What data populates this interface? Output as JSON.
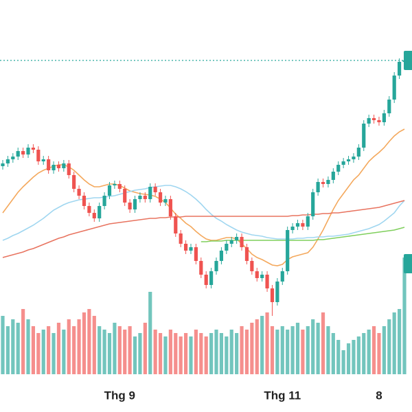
{
  "chart_data": {
    "type": "candlestick",
    "categories": [
      null,
      null,
      null,
      null,
      null,
      null,
      null,
      null,
      null,
      null,
      null,
      null,
      null,
      null,
      null,
      null,
      null,
      null,
      null,
      null,
      null,
      null,
      null,
      "Thg 9",
      null,
      null,
      null,
      null,
      null,
      null,
      null,
      null,
      null,
      null,
      null,
      null,
      null,
      null,
      null,
      null,
      null,
      null,
      null,
      null,
      null,
      null,
      null,
      null,
      null,
      null,
      null,
      null,
      null,
      null,
      null,
      "Thg 11",
      null,
      null,
      null,
      null,
      null,
      null,
      null,
      null,
      null,
      null,
      null,
      null,
      null,
      null,
      null,
      null,
      null,
      null,
      "8",
      null,
      null,
      null,
      null,
      null
    ],
    "open": [
      303,
      307,
      313,
      317,
      325,
      320,
      330,
      327,
      310,
      313,
      297,
      305,
      300,
      307,
      290,
      270,
      260,
      245,
      235,
      227,
      245,
      260,
      275,
      277,
      270,
      250,
      240,
      255,
      260,
      255,
      273,
      265,
      250,
      255,
      230,
      205,
      190,
      180,
      185,
      165,
      145,
      130,
      150,
      165,
      180,
      190,
      195,
      200,
      185,
      165,
      150,
      140,
      145,
      125,
      105,
      135,
      150,
      210,
      215,
      220,
      215,
      230,
      265,
      280,
      277,
      283,
      295,
      305,
      310,
      313,
      317,
      330,
      365,
      373,
      370,
      367,
      380,
      400,
      435,
      455
    ],
    "high": [
      312,
      318,
      322,
      330,
      330,
      335,
      335,
      332,
      318,
      318,
      310,
      310,
      312,
      312,
      295,
      275,
      265,
      250,
      240,
      250,
      265,
      280,
      282,
      282,
      275,
      255,
      260,
      265,
      265,
      278,
      278,
      270,
      260,
      260,
      235,
      210,
      195,
      190,
      190,
      170,
      150,
      155,
      170,
      185,
      195,
      200,
      205,
      205,
      190,
      170,
      155,
      150,
      150,
      130,
      140,
      155,
      215,
      220,
      225,
      225,
      235,
      270,
      285,
      285,
      288,
      300,
      310,
      315,
      318,
      322,
      335,
      370,
      378,
      378,
      375,
      385,
      405,
      440,
      460,
      462
    ],
    "low": [
      298,
      302,
      308,
      312,
      315,
      315,
      322,
      305,
      305,
      292,
      292,
      295,
      295,
      285,
      265,
      255,
      240,
      230,
      222,
      222,
      240,
      255,
      270,
      265,
      245,
      235,
      235,
      250,
      250,
      250,
      260,
      245,
      245,
      225,
      200,
      185,
      175,
      175,
      160,
      140,
      125,
      125,
      145,
      160,
      175,
      185,
      190,
      180,
      160,
      145,
      135,
      135,
      120,
      85,
      100,
      130,
      145,
      205,
      210,
      210,
      210,
      225,
      260,
      272,
      272,
      278,
      290,
      300,
      305,
      308,
      312,
      325,
      360,
      365,
      362,
      362,
      375,
      395,
      430,
      450
    ],
    "close": [
      307,
      313,
      317,
      325,
      320,
      330,
      327,
      310,
      313,
      297,
      305,
      300,
      307,
      290,
      270,
      260,
      245,
      235,
      227,
      245,
      260,
      275,
      277,
      270,
      250,
      240,
      255,
      260,
      255,
      273,
      265,
      250,
      255,
      230,
      205,
      190,
      180,
      185,
      165,
      145,
      130,
      150,
      165,
      180,
      190,
      195,
      200,
      185,
      165,
      150,
      140,
      145,
      125,
      105,
      135,
      150,
      210,
      215,
      220,
      215,
      230,
      265,
      280,
      277,
      283,
      295,
      305,
      310,
      313,
      317,
      330,
      365,
      373,
      370,
      367,
      380,
      400,
      435,
      455,
      457
    ],
    "volume": [
      85,
      70,
      80,
      75,
      95,
      80,
      70,
      60,
      65,
      70,
      60,
      75,
      65,
      80,
      70,
      80,
      90,
      95,
      85,
      70,
      65,
      60,
      75,
      70,
      65,
      70,
      55,
      60,
      75,
      120,
      65,
      60,
      55,
      65,
      60,
      55,
      60,
      55,
      65,
      60,
      55,
      60,
      65,
      60,
      55,
      65,
      60,
      70,
      65,
      75,
      80,
      85,
      90,
      70,
      65,
      70,
      65,
      70,
      75,
      65,
      70,
      80,
      75,
      90,
      70,
      60,
      50,
      35,
      45,
      50,
      55,
      60,
      65,
      70,
      60,
      70,
      80,
      90,
      95,
      170
    ],
    "ylim": [
      0,
      545
    ],
    "volume_ylim": [
      0,
      200
    ],
    "up_color": "#26a69a",
    "down_color": "#ef5350",
    "last_price_line": true,
    "series": [
      {
        "color": "#f4a85c",
        "values": [
          235,
          245,
          255,
          265,
          273,
          280,
          287,
          293,
          297,
          300,
          303,
          305,
          305,
          302,
          297,
          290,
          283,
          277,
          273,
          273,
          275,
          277,
          277,
          275,
          271,
          267,
          265,
          263,
          262,
          261,
          259,
          255,
          250,
          242,
          233,
          227,
          220,
          215,
          208,
          202,
          197,
          195,
          195,
          197,
          199,
          199,
          197,
          190,
          183,
          175,
          170,
          167,
          163,
          159,
          158,
          160,
          167,
          171,
          173,
          175,
          177,
          185,
          197,
          210,
          225,
          240,
          253,
          263,
          273,
          283,
          290,
          300,
          310,
          317,
          323,
          330,
          339,
          347,
          353,
          357
        ]
      },
      {
        "color": "#9fd6f0",
        "values": [
          195,
          198,
          202,
          205,
          209,
          213,
          217,
          222,
          227,
          233,
          239,
          243,
          247,
          250,
          252,
          254,
          255,
          256,
          257,
          257,
          258,
          259,
          260,
          262,
          264,
          266,
          268,
          269,
          270,
          272,
          273,
          274,
          275,
          275,
          273,
          270,
          266,
          261,
          255,
          248,
          240,
          233,
          227,
          223,
          218,
          214,
          210,
          207,
          205,
          203,
          202,
          201,
          199,
          198,
          197,
          197,
          197,
          197,
          198,
          198,
          199,
          199,
          200,
          200,
          201,
          201,
          202,
          203,
          204,
          206,
          208,
          210,
          212,
          215,
          218,
          223,
          229,
          235,
          245,
          253
        ]
      },
      {
        "color": "#e8735f",
        "values": [
          170,
          172,
          174,
          176,
          178,
          181,
          183,
          186,
          189,
          192,
          195,
          198,
          200,
          203,
          205,
          207,
          209,
          211,
          213,
          215,
          217,
          219,
          220,
          221,
          222,
          223,
          224,
          225,
          226,
          227,
          227,
          228,
          228,
          229,
          229,
          229,
          230,
          230,
          230,
          230,
          230,
          230,
          230,
          230,
          230,
          230,
          230,
          230,
          230,
          230,
          230,
          230,
          230,
          230,
          230,
          230,
          230,
          231,
          231,
          232,
          232,
          233,
          233,
          234,
          234,
          235,
          235,
          236,
          237,
          238,
          239,
          240,
          241,
          242,
          243,
          245,
          247,
          249,
          251,
          253
        ]
      },
      {
        "color": "#7fcf5c",
        "values": [
          null,
          null,
          null,
          null,
          null,
          null,
          null,
          null,
          null,
          null,
          null,
          null,
          null,
          null,
          null,
          null,
          null,
          null,
          null,
          null,
          null,
          null,
          null,
          null,
          null,
          null,
          null,
          null,
          null,
          null,
          null,
          null,
          null,
          null,
          null,
          null,
          null,
          null,
          null,
          193,
          193,
          194,
          194,
          194,
          195,
          195,
          195,
          195,
          195,
          195,
          195,
          195,
          195,
          195,
          195,
          195,
          195,
          195,
          195,
          195,
          195,
          195,
          196,
          196,
          197,
          198,
          199,
          200,
          201,
          202,
          203,
          204,
          205,
          206,
          207,
          208,
          209,
          210,
          212,
          214
        ]
      }
    ]
  }
}
